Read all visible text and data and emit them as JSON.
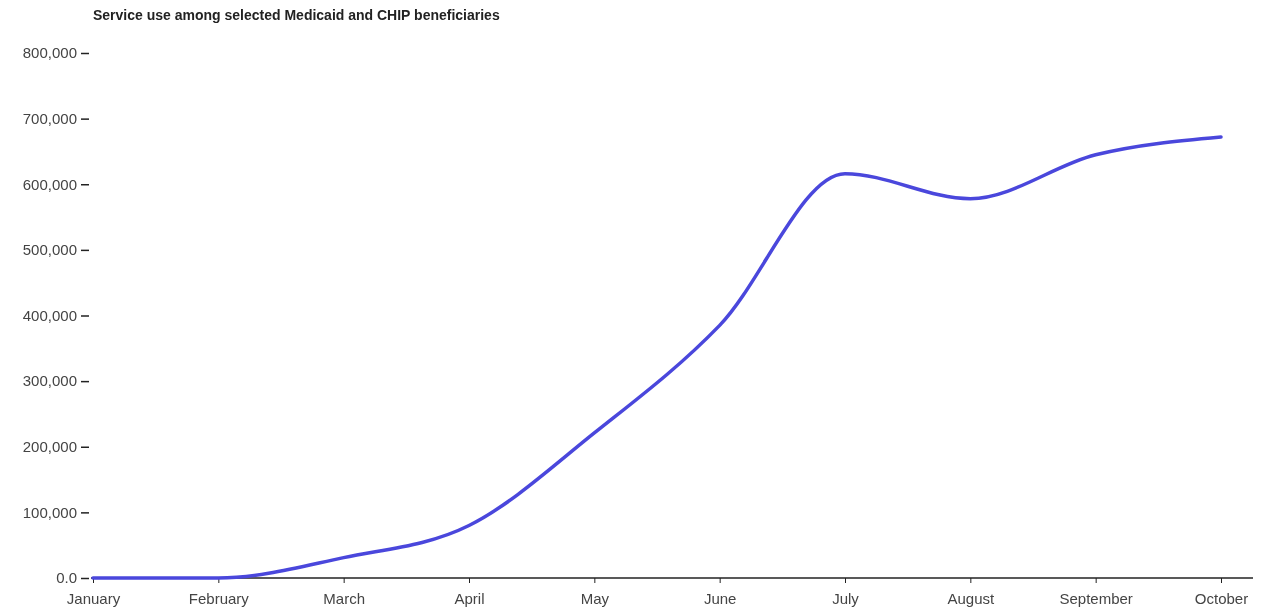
{
  "chart_data": {
    "type": "line",
    "title": "Service use among selected Medicaid and CHIP beneficiaries",
    "categories": [
      "January",
      "February",
      "March",
      "April",
      "May",
      "June",
      "July",
      "August",
      "September",
      "October"
    ],
    "series": [
      {
        "color": "#4a47dc",
        "values": [
          0,
          0,
          31000,
          80000,
          221000,
          385000,
          616000,
          578000,
          645000,
          672000
        ]
      }
    ],
    "ylim": [
      0,
      800000
    ],
    "yticks": [
      {
        "value": 0,
        "label": "0.0"
      },
      {
        "value": 100000,
        "label": "100,000"
      },
      {
        "value": 200000,
        "label": "200,000"
      },
      {
        "value": 300000,
        "label": "300,000"
      },
      {
        "value": 400000,
        "label": "400,000"
      },
      {
        "value": 500000,
        "label": "500,000"
      },
      {
        "value": 600000,
        "label": "600,000"
      },
      {
        "value": 700000,
        "label": "700,000"
      },
      {
        "value": 800000,
        "label": "800,000"
      }
    ],
    "grid": false,
    "marker": "none",
    "line_style": "solid"
  }
}
